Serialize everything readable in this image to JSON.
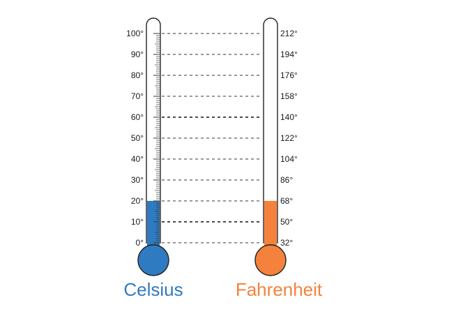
{
  "celsius": {
    "label": "Celsius",
    "color": "#2f7bc1",
    "ticks": [
      "100°",
      "90°",
      "80°",
      "70°",
      "60°",
      "50°",
      "40°",
      "30°",
      "20°",
      "10°",
      "0°"
    ],
    "fill_level_fraction": 0.2
  },
  "fahrenheit": {
    "label": "Fahrenheit",
    "color": "#f5823c",
    "ticks": [
      "212°",
      "194°",
      "176°",
      "158°",
      "140°",
      "122°",
      "104°",
      "86°",
      "68°",
      "50°",
      "32°"
    ],
    "fill_level_fraction": 0.2
  },
  "connector_style": {
    "emphasized_rows": [
      "60°",
      "10°"
    ]
  }
}
